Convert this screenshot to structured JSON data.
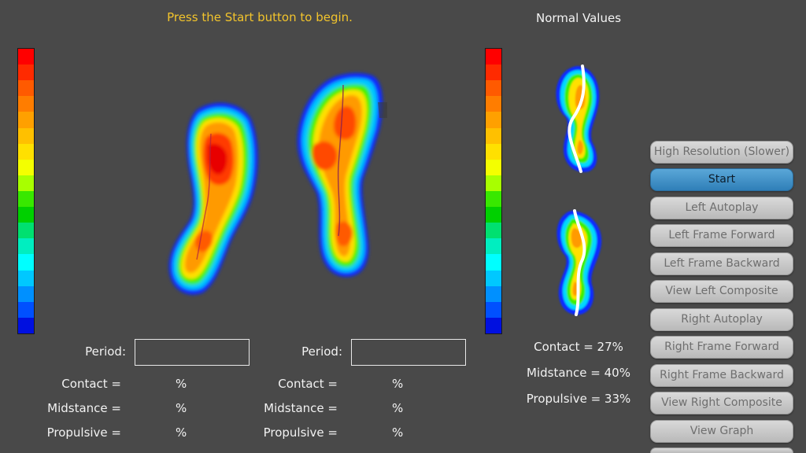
{
  "prompt": "Press the Start button to begin.",
  "normal_values": {
    "title": "Normal Values",
    "contact": "Contact = 27%",
    "midstance": "Midstance = 40%",
    "propulsive": "Propulsive = 33%"
  },
  "scale_colors": [
    "#ff0000",
    "#ff2a00",
    "#ff5a00",
    "#ff7d00",
    "#ffa000",
    "#ffc000",
    "#ffe000",
    "#f4ff00",
    "#a8ff00",
    "#38e800",
    "#00d000",
    "#00e070",
    "#00eec0",
    "#00ffff",
    "#00c8ff",
    "#0090ff",
    "#0050ff",
    "#0010e0"
  ],
  "left_panel": {
    "period_label": "Period:",
    "period_value": "",
    "contact_label": "Contact =",
    "midstance_label": "Midstance =",
    "propulsive_label": "Propulsive =",
    "contact_value": "%",
    "midstance_value": "%",
    "propulsive_value": "%"
  },
  "right_panel": {
    "period_label": "Period:",
    "period_value": "",
    "contact_label": "Contact =",
    "midstance_label": "Midstance =",
    "propulsive_label": "Propulsive =",
    "contact_value": "%",
    "midstance_value": "%",
    "propulsive_value": "%"
  },
  "buttons": {
    "high_resolution": "High Resolution (Slower)",
    "start": "Start",
    "left_autoplay": "Left Autoplay",
    "left_frame_forward": "Left Frame Forward",
    "left_frame_backward": "Left Frame Backward",
    "view_left_composite": "View Left Composite",
    "right_autoplay": "Right Autoplay",
    "right_frame_forward": "Right Frame Forward",
    "right_frame_backward": "Right Frame Backward",
    "view_right_composite": "View Right Composite",
    "view_graph": "View Graph"
  }
}
